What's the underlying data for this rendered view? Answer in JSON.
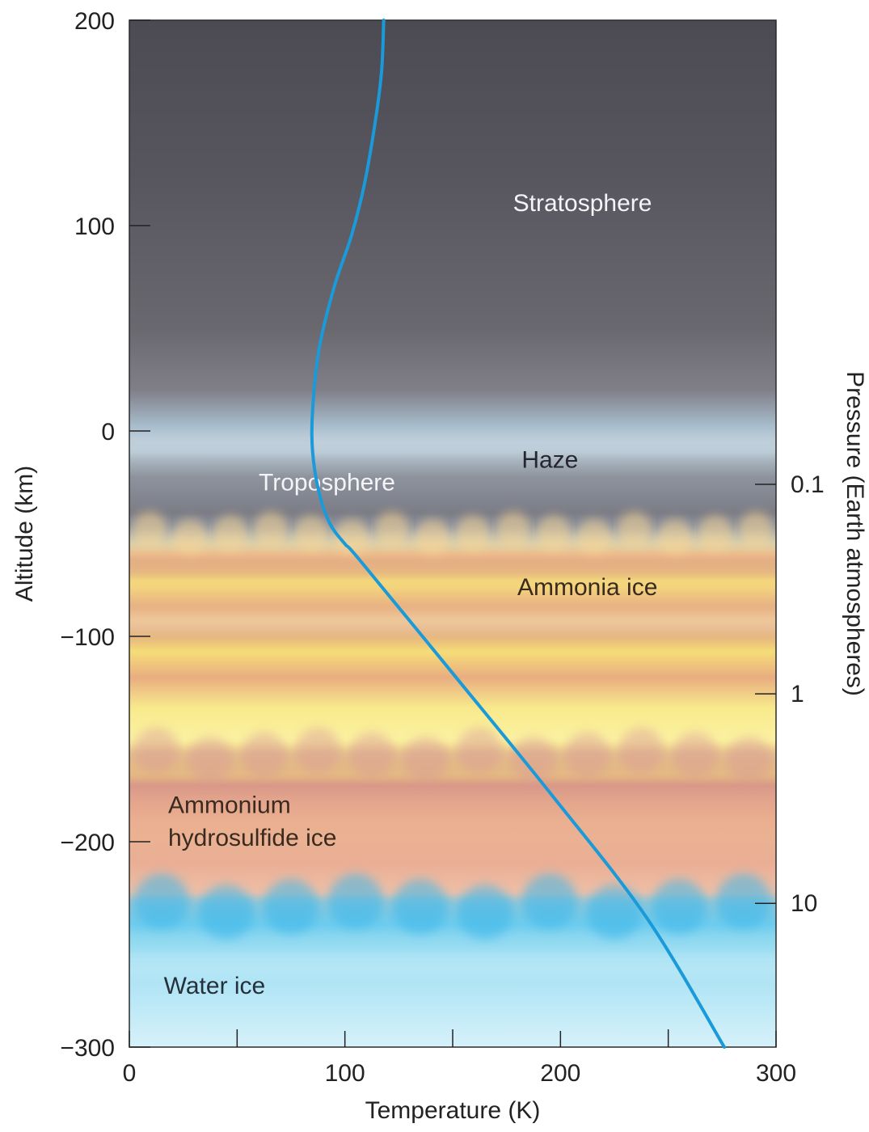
{
  "chart_data": {
    "type": "line",
    "xlabel": "Temperature (K)",
    "ylabel": "Altitude (km)",
    "y2label": "Pressure (Earth atmospheres)",
    "xlim": [
      0,
      300
    ],
    "ylim": [
      -300,
      200
    ],
    "x_ticks": [
      0,
      100,
      200,
      300
    ],
    "x_minor_ticks": [
      50,
      150,
      250
    ],
    "y_ticks": [
      200,
      100,
      0,
      -100,
      -200,
      -300
    ],
    "y2_ticks": [
      {
        "label": "0.1",
        "altitude": -26
      },
      {
        "label": "1",
        "altitude": -128
      },
      {
        "label": "10",
        "altitude": -230
      }
    ],
    "grid": false,
    "series": [
      {
        "color": "#1a9ad8",
        "points": [
          {
            "x": 118,
            "y": 200
          },
          {
            "x": 117,
            "y": 175
          },
          {
            "x": 114,
            "y": 150
          },
          {
            "x": 109,
            "y": 120
          },
          {
            "x": 103,
            "y": 95
          },
          {
            "x": 95,
            "y": 70
          },
          {
            "x": 88,
            "y": 40
          },
          {
            "x": 85,
            "y": 10
          },
          {
            "x": 85,
            "y": -10
          },
          {
            "x": 88,
            "y": -30
          },
          {
            "x": 93,
            "y": -45
          },
          {
            "x": 100,
            "y": -55
          },
          {
            "x": 107,
            "y": -63
          },
          {
            "x": 150,
            "y": -118
          },
          {
            "x": 195,
            "y": -176
          },
          {
            "x": 240,
            "y": -237
          },
          {
            "x": 276,
            "y": -300
          }
        ]
      }
    ],
    "layers": [
      {
        "name": "Stratosphere",
        "text_color": "#f4f4f8",
        "label_pos": [
          178,
          107
        ]
      },
      {
        "name": "Haze",
        "text_color": "#262630",
        "label_pos": [
          182,
          -18
        ]
      },
      {
        "name": "Troposphere",
        "text_color": "#f4f4f8",
        "label_pos": [
          60,
          -29
        ]
      },
      {
        "name": "Ammonia ice",
        "text_color": "#3a2a20",
        "label_pos": [
          180,
          -80
        ]
      },
      {
        "name": "Ammonium",
        "text_color": "#3a2a20",
        "label_pos": [
          18,
          -186
        ]
      },
      {
        "name": "hydrosulfide ice",
        "text_color": "#3a2a20",
        "label_pos": [
          18,
          -202
        ]
      },
      {
        "name": "Water ice",
        "text_color": "#25303a",
        "label_pos": [
          16,
          -274
        ]
      }
    ]
  }
}
